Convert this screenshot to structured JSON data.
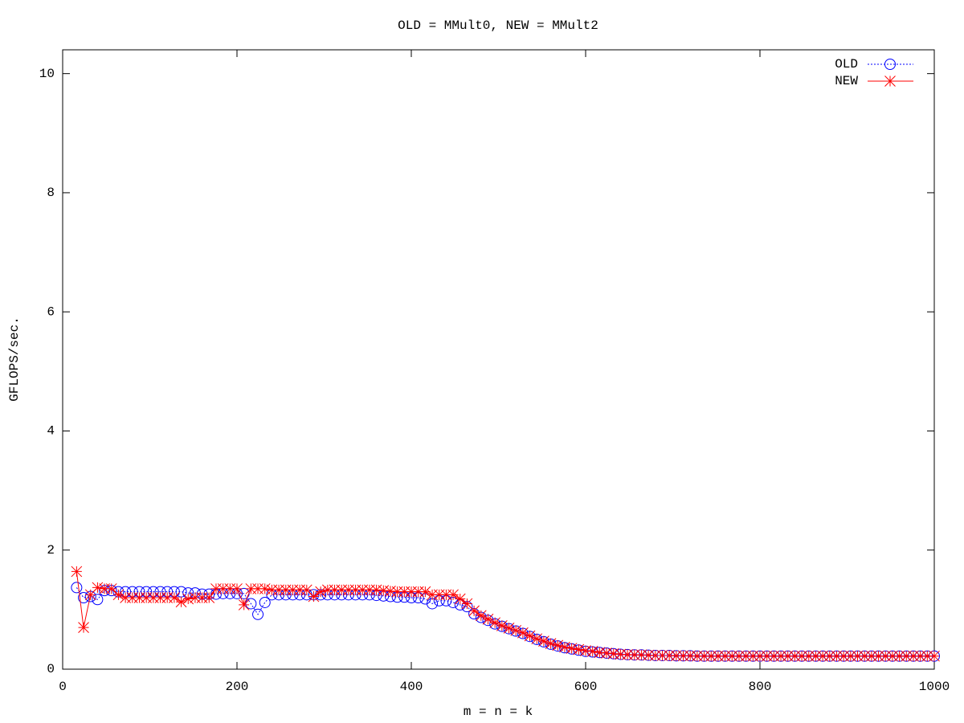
{
  "chart_data": {
    "type": "line",
    "title": "OLD = MMult0, NEW = MMult2",
    "x_label": "m = n = k",
    "y_label": "GFLOPS/sec.",
    "xlim": [
      0,
      1000
    ],
    "xticks": [
      0,
      200,
      400,
      600,
      800,
      1000
    ],
    "ylim": [
      0,
      10.4
    ],
    "yticks": [
      0,
      2,
      4,
      6,
      8,
      10
    ],
    "legend": "top-right",
    "x": [
      16,
      24,
      32,
      40,
      48,
      56,
      64,
      72,
      80,
      88,
      96,
      104,
      112,
      120,
      128,
      136,
      144,
      152,
      160,
      168,
      176,
      184,
      192,
      200,
      208,
      216,
      224,
      232,
      240,
      248,
      256,
      264,
      272,
      280,
      288,
      296,
      304,
      312,
      320,
      328,
      336,
      344,
      352,
      360,
      368,
      376,
      384,
      392,
      400,
      408,
      416,
      424,
      432,
      440,
      448,
      456,
      464,
      472,
      480,
      488,
      496,
      504,
      512,
      520,
      528,
      536,
      544,
      552,
      560,
      568,
      576,
      584,
      592,
      600,
      608,
      616,
      624,
      632,
      640,
      648,
      656,
      664,
      672,
      680,
      688,
      696,
      704,
      712,
      720,
      728,
      736,
      744,
      752,
      760,
      768,
      776,
      784,
      792,
      800,
      808,
      816,
      824,
      832,
      840,
      848,
      856,
      864,
      872,
      880,
      888,
      896,
      904,
      912,
      920,
      928,
      936,
      944,
      952,
      960,
      968,
      976,
      984,
      992,
      1000
    ],
    "series": [
      {
        "name": "OLD",
        "color": "#0000ff",
        "marker": "circle",
        "line": "dotted",
        "values": [
          1.37,
          1.2,
          1.22,
          1.17,
          1.32,
          1.32,
          1.3,
          1.3,
          1.3,
          1.3,
          1.3,
          1.3,
          1.3,
          1.3,
          1.3,
          1.3,
          1.28,
          1.28,
          1.26,
          1.26,
          1.26,
          1.27,
          1.27,
          1.27,
          1.27,
          1.1,
          0.92,
          1.12,
          1.25,
          1.25,
          1.25,
          1.25,
          1.25,
          1.25,
          1.25,
          1.25,
          1.25,
          1.25,
          1.25,
          1.25,
          1.25,
          1.25,
          1.25,
          1.24,
          1.23,
          1.22,
          1.21,
          1.21,
          1.2,
          1.2,
          1.18,
          1.1,
          1.15,
          1.15,
          1.12,
          1.08,
          1.05,
          0.93,
          0.87,
          0.82,
          0.76,
          0.72,
          0.68,
          0.64,
          0.6,
          0.55,
          0.5,
          0.46,
          0.42,
          0.39,
          0.36,
          0.34,
          0.32,
          0.3,
          0.29,
          0.28,
          0.27,
          0.26,
          0.25,
          0.245,
          0.24,
          0.24,
          0.235,
          0.23,
          0.23,
          0.23,
          0.225,
          0.225,
          0.225,
          0.22,
          0.22,
          0.22,
          0.22,
          0.22,
          0.22,
          0.22,
          0.22,
          0.22,
          0.22,
          0.22,
          0.22,
          0.22,
          0.22,
          0.22,
          0.22,
          0.22,
          0.22,
          0.22,
          0.22,
          0.22,
          0.22,
          0.22,
          0.22,
          0.22,
          0.22,
          0.22,
          0.22,
          0.22,
          0.22,
          0.22,
          0.22,
          0.22,
          0.22,
          0.22
        ]
      },
      {
        "name": "NEW",
        "color": "#ff0000",
        "marker": "star",
        "line": "solid",
        "values": [
          1.64,
          0.7,
          1.25,
          1.37,
          1.35,
          1.35,
          1.25,
          1.2,
          1.2,
          1.2,
          1.2,
          1.2,
          1.2,
          1.2,
          1.2,
          1.13,
          1.18,
          1.2,
          1.2,
          1.2,
          1.35,
          1.35,
          1.35,
          1.35,
          1.08,
          1.35,
          1.35,
          1.35,
          1.33,
          1.33,
          1.33,
          1.33,
          1.33,
          1.33,
          1.22,
          1.3,
          1.33,
          1.33,
          1.33,
          1.33,
          1.33,
          1.33,
          1.33,
          1.33,
          1.32,
          1.31,
          1.3,
          1.3,
          1.3,
          1.3,
          1.3,
          1.25,
          1.25,
          1.25,
          1.25,
          1.18,
          1.1,
          0.98,
          0.9,
          0.84,
          0.78,
          0.73,
          0.69,
          0.65,
          0.61,
          0.56,
          0.51,
          0.47,
          0.43,
          0.4,
          0.37,
          0.35,
          0.33,
          0.31,
          0.3,
          0.28,
          0.27,
          0.26,
          0.25,
          0.245,
          0.24,
          0.24,
          0.235,
          0.23,
          0.23,
          0.23,
          0.225,
          0.225,
          0.225,
          0.22,
          0.22,
          0.22,
          0.22,
          0.22,
          0.22,
          0.22,
          0.22,
          0.22,
          0.22,
          0.22,
          0.22,
          0.22,
          0.22,
          0.22,
          0.22,
          0.22,
          0.22,
          0.22,
          0.22,
          0.22,
          0.22,
          0.22,
          0.22,
          0.22,
          0.22,
          0.22,
          0.22,
          0.22,
          0.22,
          0.22,
          0.22,
          0.22,
          0.22,
          0.22
        ]
      }
    ]
  }
}
